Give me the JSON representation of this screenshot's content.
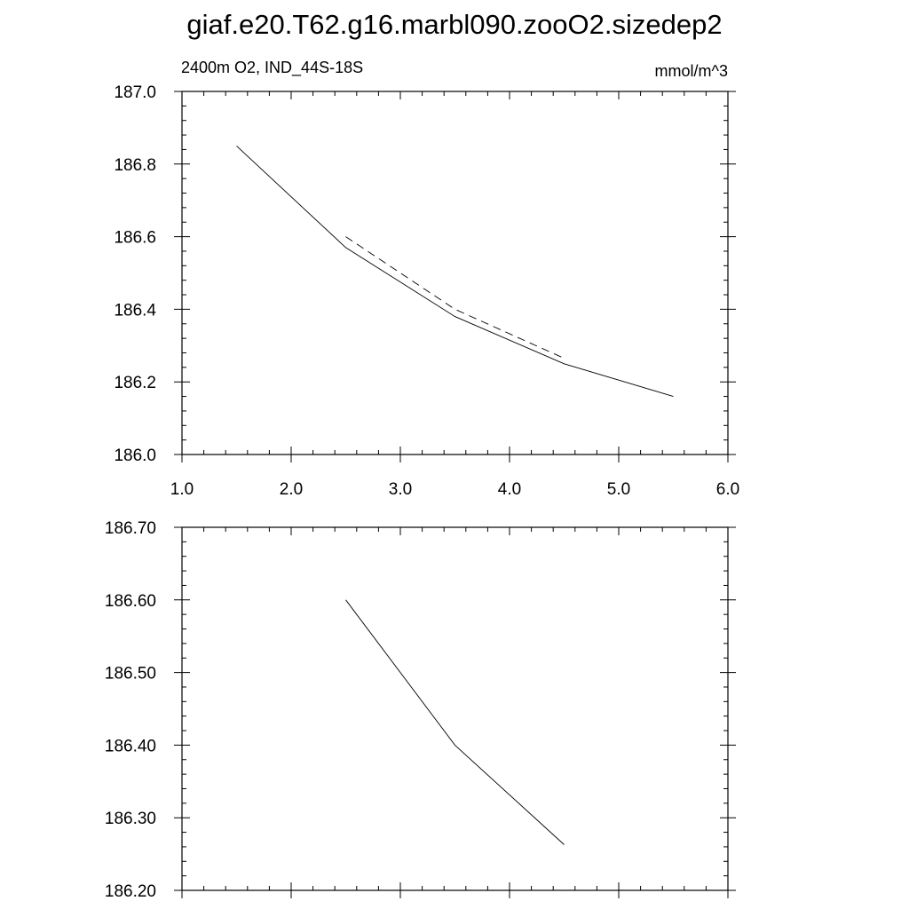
{
  "title": "giaf.e20.T62.g16.marbl090.zooO2.sizedep2",
  "chart_data": [
    {
      "type": "line",
      "left_label": "2400m O2, IND_44S-18S",
      "right_label": "mmol/m^3",
      "xlim": [
        1.0,
        6.0
      ],
      "ylim": [
        186.0,
        187.0
      ],
      "x_ticks": [
        1.0,
        2.0,
        3.0,
        4.0,
        5.0,
        6.0
      ],
      "x_tick_labels": [
        "1.0",
        "2.0",
        "3.0",
        "4.0",
        "5.0",
        "6.0"
      ],
      "y_ticks": [
        186.0,
        186.2,
        186.4,
        186.6,
        186.8,
        187.0
      ],
      "y_tick_labels": [
        "186.0",
        "186.2",
        "186.4",
        "186.6",
        "186.8",
        "187.0"
      ],
      "grid": false,
      "series": [
        {
          "style": "solid",
          "x": [
            1.5,
            2.5,
            3.5,
            4.5,
            5.5
          ],
          "y": [
            186.85,
            186.57,
            186.38,
            186.25,
            186.16
          ]
        },
        {
          "style": "dashed",
          "x": [
            2.5,
            3.5,
            4.5
          ],
          "y": [
            186.6,
            186.4,
            186.265
          ]
        }
      ]
    },
    {
      "type": "line",
      "xlim": [
        1.0,
        6.0
      ],
      "ylim": [
        186.2,
        186.7
      ],
      "x_ticks": [
        1.0,
        2.0,
        3.0,
        4.0,
        5.0,
        6.0
      ],
      "y_ticks": [
        186.2,
        186.3,
        186.4,
        186.5,
        186.6,
        186.7
      ],
      "y_tick_labels": [
        "186.20",
        "186.30",
        "186.40",
        "186.50",
        "186.60",
        "186.70"
      ],
      "grid": false,
      "series": [
        {
          "style": "solid",
          "x": [
            2.5,
            3.5,
            4.5
          ],
          "y": [
            186.6,
            186.4,
            186.263
          ]
        }
      ]
    }
  ]
}
